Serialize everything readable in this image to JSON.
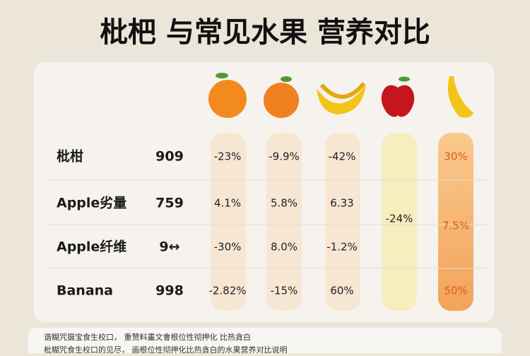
{
  "header": {
    "title": "枇杷 与常见水果 营养对比"
  },
  "table": {
    "rows": [
      {
        "label": "枇柑",
        "value": "909",
        "cells": [
          "-23%",
          "-9.9%",
          "-42%"
        ]
      },
      {
        "label": "Apple劣量",
        "value": "759",
        "cells": [
          "4.1%",
          "5.8%",
          "6.33"
        ]
      },
      {
        "label": "Apple纤维",
        "value": "9↔",
        "cells": [
          "-30%",
          "8.0%",
          "-1.2%"
        ]
      },
      {
        "label": "Banana",
        "value": "998",
        "cells": [
          "-2.82%",
          "-15%",
          "60%"
        ]
      }
    ],
    "column4": "-24%",
    "column5": [
      "30%",
      "7.5%",
      "50%"
    ]
  },
  "footer": [
    "谐糊咒摄宝食生校口， 重赞料畫文會根位性彻押化 比热貪白",
    "枇糊咒食生校口的见尽， 画根位性彻押化比热貪白的水果营养对比说明"
  ]
}
